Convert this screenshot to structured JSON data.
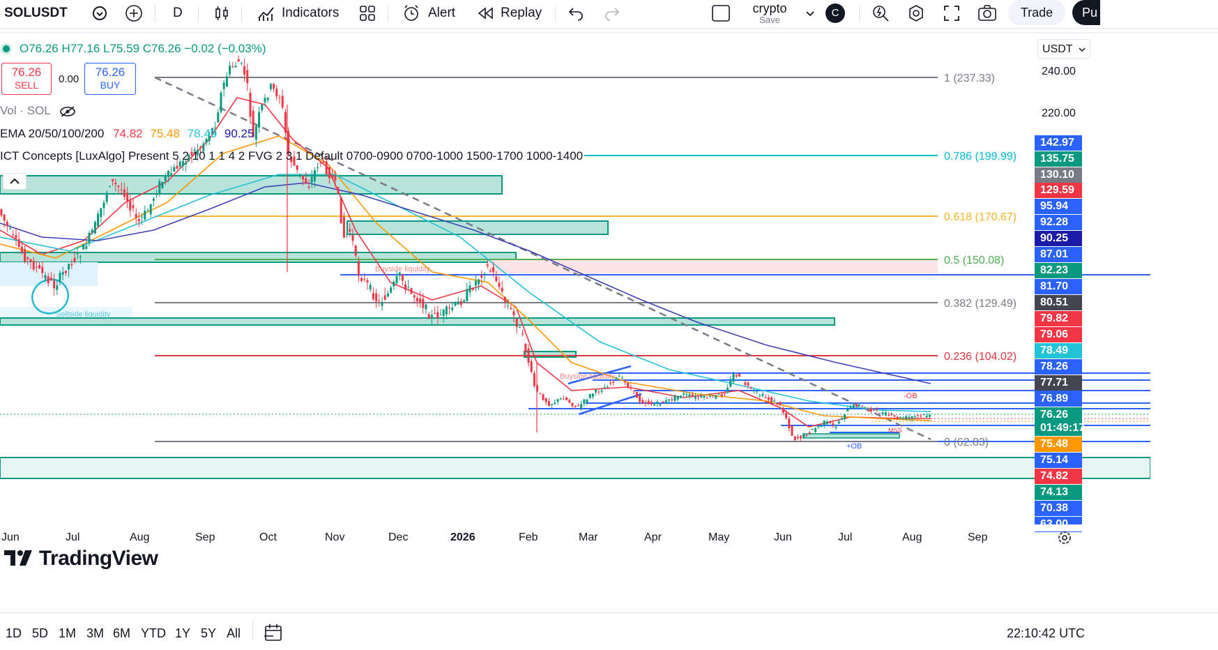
{
  "toolbar": {
    "symbol": "SOLUSDT",
    "interval": "D",
    "indicators": "Indicators",
    "alert": "Alert",
    "replay": "Replay",
    "layout_name": "crypto",
    "layout_status": "Save",
    "avatar": "C",
    "trade": "Trade",
    "publish": "Pu"
  },
  "legend": {
    "ohlc": "O76.26  H77.16  L75.59  C76.26  −0.02 (−0.03%)",
    "sell_price": "76.26",
    "sell_label": "SELL",
    "spread": "0.00",
    "buy_price": "76.26",
    "buy_label": "BUY",
    "vol": "Vol · SOL",
    "ema_label": "EMA 20/50/100/200",
    "ema_values": [
      "74.82",
      "75.48",
      "78.49",
      "90.25"
    ],
    "ict": "ICT Concepts [LuxAlgo] Present 5 2 10 1 1 4 2 FVG 2 3 1 Default 0700-0900 0700-1000 1500-1700 1000-1400"
  },
  "currency": "USDT",
  "fib_labels": [
    "1 (237.33)",
    "0.786 (199.99)",
    "0.618 (170.67)",
    "0.5 (150.08)",
    "0.382 (129.49)",
    "0.236 (104.02)",
    "0 (62.83)"
  ],
  "chart_annotations": [
    "Buyside liquidity",
    "Sellside liquidity",
    "Buyside liquidity",
    "-OB",
    "+OB",
    "MSS"
  ],
  "price_scale": [
    "240.00",
    "220.00"
  ],
  "price_labels": [
    {
      "v": "142.97",
      "c": "#2962ff"
    },
    {
      "v": "135.75",
      "c": "#089981"
    },
    {
      "v": "130.10",
      "c": "#787b86"
    },
    {
      "v": "129.59",
      "c": "#f23645"
    },
    {
      "v": "95.94",
      "c": "#2962ff"
    },
    {
      "v": "92.28",
      "c": "#2962ff"
    },
    {
      "v": "90.25",
      "c": "#1a1aa6"
    },
    {
      "v": "87.01",
      "c": "#2962ff"
    },
    {
      "v": "82.23",
      "c": "#089981"
    },
    {
      "v": "81.70",
      "c": "#2962ff"
    },
    {
      "v": "80.51",
      "c": "#434651"
    },
    {
      "v": "79.82",
      "c": "#f23645"
    },
    {
      "v": "79.06",
      "c": "#f23645"
    },
    {
      "v": "78.49",
      "c": "#22c3d6"
    },
    {
      "v": "78.26",
      "c": "#2962ff"
    },
    {
      "v": "77.71",
      "c": "#434651"
    },
    {
      "v": "76.89",
      "c": "#2962ff"
    },
    {
      "v": "76.26",
      "c": "#089981"
    },
    {
      "v": "01:49:17",
      "c": "#089981"
    },
    {
      "v": "75.48",
      "c": "#ff9800"
    },
    {
      "v": "75.14",
      "c": "#2962ff"
    },
    {
      "v": "74.82",
      "c": "#f23645"
    },
    {
      "v": "74.13",
      "c": "#089981"
    },
    {
      "v": "70.38",
      "c": "#2962ff"
    },
    {
      "v": "63.00",
      "c": "#2962ff"
    }
  ],
  "months": [
    "Jun",
    "Jul",
    "Aug",
    "Sep",
    "Oct",
    "Nov",
    "Dec",
    "2026",
    "Feb",
    "Mar",
    "Apr",
    "May",
    "Jun",
    "Jul",
    "Aug",
    "Sep"
  ],
  "ranges": [
    "1D",
    "5D",
    "1M",
    "3M",
    "6M",
    "YTD",
    "1Y",
    "5Y",
    "All"
  ],
  "clock": "22:10:42 UTC",
  "logo": "TradingView",
  "colors": {
    "up": "#089981",
    "down": "#f23645",
    "accent": "#2962ff"
  }
}
